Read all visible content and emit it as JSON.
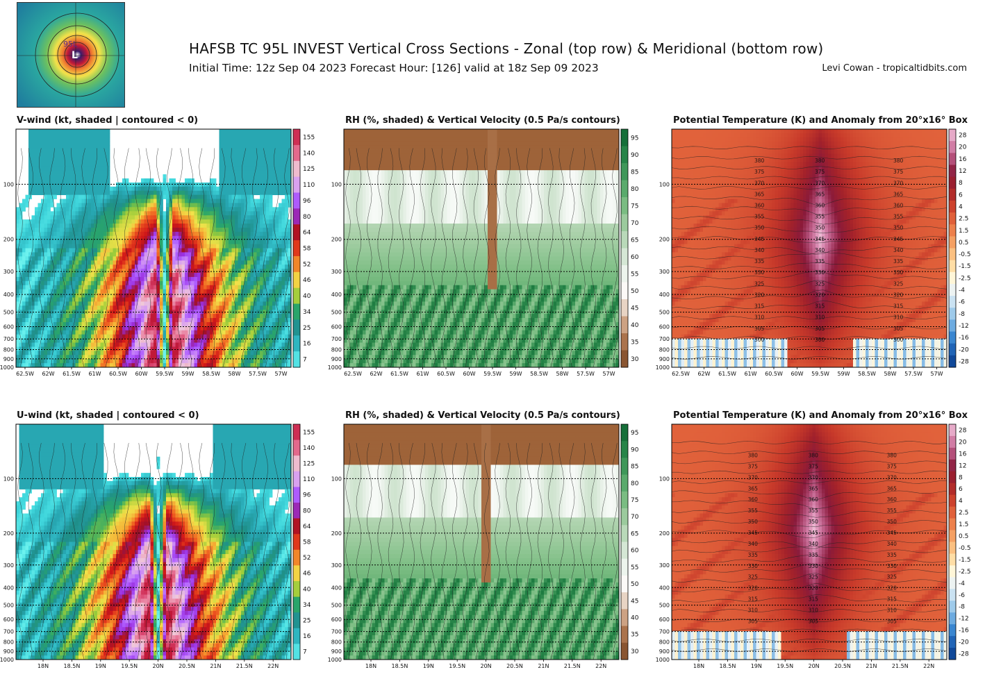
{
  "header": {
    "title": "HAFSB TC 95L INVEST Vertical Cross Sections - Zonal (top row) & Meridional (bottom row)",
    "subtitle": "Initial Time: 12z Sep 04 2023 Forecast Hour: [126] valid at 18z Sep 09 2023",
    "credit": "Levi Cowan - tropicaltidbits.com",
    "thumbnail_label": "95L"
  },
  "chart_data": [
    {
      "type": "heatmap",
      "title": "V-wind (kt, shaded | contoured < 0)",
      "x_ticks": [
        "62.5W",
        "62W",
        "61.5W",
        "61W",
        "60.5W",
        "60W",
        "59.5W",
        "59W",
        "58.5W",
        "58W",
        "57.5W",
        "57W"
      ],
      "y_ticks": [
        "100",
        "200",
        "300",
        "400",
        "500",
        "600",
        "700",
        "800",
        "900",
        "1000"
      ],
      "y_scale": "log-pressure",
      "ylim": [
        1000,
        50
      ],
      "colorbar": [
        "155",
        "140",
        "125",
        "110",
        "96",
        "80",
        "64",
        "58",
        "52",
        "46",
        "40",
        "34",
        "25",
        "16",
        "7"
      ],
      "core_x": "59.5W",
      "profile": "wind"
    },
    {
      "type": "heatmap",
      "title": "RH (%, shaded) & Vertical Velocity (0.5 Pa/s contours)",
      "x_ticks": [
        "62.5W",
        "62W",
        "61.5W",
        "61W",
        "60.5W",
        "60W",
        "59.5W",
        "59W",
        "58.5W",
        "58W",
        "57.5W",
        "57W"
      ],
      "y_ticks": [
        "100",
        "200",
        "300",
        "400",
        "500",
        "600",
        "700",
        "800",
        "900",
        "1000"
      ],
      "y_scale": "log-pressure",
      "ylim": [
        1000,
        50
      ],
      "colorbar": [
        "95",
        "90",
        "85",
        "80",
        "75",
        "70",
        "65",
        "60",
        "55",
        "50",
        "45",
        "40",
        "35",
        "30"
      ],
      "core_x": "59.5W",
      "profile": "rh"
    },
    {
      "type": "heatmap",
      "title": "Potential Temperature (K) and Anomaly from 20°x16° Box",
      "x_ticks": [
        "62.5W",
        "62W",
        "61.5W",
        "61W",
        "60.5W",
        "60W",
        "59.5W",
        "59W",
        "58.5W",
        "58W",
        "57.5W",
        "57W"
      ],
      "y_ticks": [
        "100",
        "200",
        "300",
        "400",
        "500",
        "600",
        "700",
        "800",
        "900",
        "1000"
      ],
      "y_scale": "log-pressure",
      "ylim": [
        1000,
        50
      ],
      "colorbar": [
        "28",
        "20",
        "16",
        "12",
        "8",
        "6",
        "4",
        "2.5",
        "1.5",
        "0.5",
        "-0.5",
        "-1.5",
        "-2.5",
        "-4",
        "-6",
        "-8",
        "-12",
        "-16",
        "-20",
        "-28"
      ],
      "contour_labels": [
        "380",
        "375",
        "370",
        "365",
        "360",
        "355",
        "350",
        "345",
        "340",
        "335",
        "330",
        "325",
        "320",
        "315",
        "310",
        "305",
        "300"
      ],
      "core_x": "59.5W",
      "profile": "theta"
    },
    {
      "type": "heatmap",
      "title": "U-wind (kt, shaded | contoured < 0)",
      "x_ticks": [
        "18N",
        "18.5N",
        "19N",
        "19.5N",
        "20N",
        "20.5N",
        "21N",
        "21.5N",
        "22N"
      ],
      "y_ticks": [
        "100",
        "200",
        "300",
        "400",
        "500",
        "600",
        "700",
        "800",
        "900",
        "1000"
      ],
      "y_scale": "log-pressure",
      "ylim": [
        1000,
        50
      ],
      "colorbar": [
        "155",
        "140",
        "125",
        "110",
        "96",
        "80",
        "64",
        "58",
        "52",
        "46",
        "40",
        "34",
        "25",
        "16",
        "7"
      ],
      "core_x": "20N",
      "profile": "wind"
    },
    {
      "type": "heatmap",
      "title": "RH (%, shaded) & Vertical Velocity (0.5 Pa/s contours)",
      "x_ticks": [
        "18N",
        "18.5N",
        "19N",
        "19.5N",
        "20N",
        "20.5N",
        "21N",
        "21.5N",
        "22N"
      ],
      "y_ticks": [
        "100",
        "200",
        "300",
        "400",
        "500",
        "600",
        "700",
        "800",
        "900",
        "1000"
      ],
      "y_scale": "log-pressure",
      "ylim": [
        1000,
        50
      ],
      "colorbar": [
        "95",
        "90",
        "85",
        "80",
        "75",
        "70",
        "65",
        "60",
        "55",
        "50",
        "45",
        "40",
        "35",
        "30"
      ],
      "core_x": "20N",
      "profile": "rh"
    },
    {
      "type": "heatmap",
      "title": "Potential Temperature (K) and Anomaly from 20°x16° Box",
      "x_ticks": [
        "18N",
        "18.5N",
        "19N",
        "19.5N",
        "20N",
        "20.5N",
        "21N",
        "21.5N",
        "22N"
      ],
      "y_ticks": [
        "100",
        "200",
        "300",
        "400",
        "500",
        "600",
        "700",
        "800",
        "900",
        "1000"
      ],
      "y_scale": "log-pressure",
      "ylim": [
        1000,
        50
      ],
      "colorbar": [
        "28",
        "20",
        "16",
        "12",
        "8",
        "6",
        "4",
        "2.5",
        "1.5",
        "0.5",
        "-0.5",
        "-1.5",
        "-2.5",
        "-4",
        "-6",
        "-8",
        "-12",
        "-16",
        "-20",
        "-28"
      ],
      "contour_labels": [
        "380",
        "375",
        "370",
        "365",
        "360",
        "355",
        "350",
        "345",
        "340",
        "335",
        "330",
        "325",
        "320",
        "315",
        "310",
        "305"
      ],
      "core_x": "20N",
      "profile": "theta"
    }
  ],
  "palettes": {
    "wind": [
      "#6cf2ee",
      "#3fd6dc",
      "#28a8b4",
      "#1f8f8a",
      "#2aa66a",
      "#9ccc3a",
      "#f2e24a",
      "#f5a030",
      "#ee5a20",
      "#d21818",
      "#a0102a",
      "#9b30e0",
      "#b060ff",
      "#d8a0f0",
      "#f0c8d8",
      "#e87a9a",
      "#d8406a",
      "#c01838"
    ],
    "rh": [
      "#7a4a2a",
      "#a0643a",
      "#c89a78",
      "#e8d4c4",
      "#ffffff",
      "#e6f0e6",
      "#c8e0c8",
      "#a6cfa6",
      "#7fbf86",
      "#5aaa6c",
      "#3a9456",
      "#1f7d42",
      "#0f6432"
    ],
    "theta": [
      "#0a3a8a",
      "#1a5cb0",
      "#3a86d0",
      "#7ab4e4",
      "#b6d8ee",
      "#e8f2f8",
      "#fff6d8",
      "#ffd89a",
      "#f8b070",
      "#f08850",
      "#e0603a",
      "#c83a2a",
      "#a4222a",
      "#8a1a3a",
      "#b4507a",
      "#d888b0",
      "#f0c0d8"
    ]
  }
}
